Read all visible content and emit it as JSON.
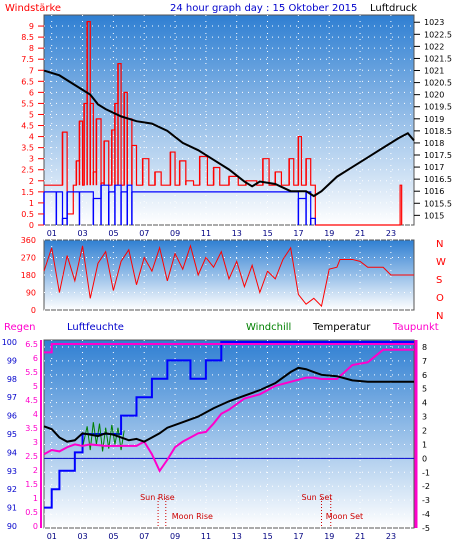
{
  "header": {
    "wind_label": "Windstärke",
    "title": "24 hour graph day : 15 Oktober 2015",
    "pressure_label": "Luftdruck"
  },
  "labels": {
    "rain": "Regen",
    "humidity": "Luftfeuchte",
    "windchill": "Windchill",
    "temperature": "Temperatur",
    "dewpoint": "Taupunkt",
    "sun_rise": "Sun Rise",
    "sun_set": "Sun Set",
    "moon_rise": "Moon Rise",
    "moon_set": "Moon Set"
  },
  "compass": [
    "N",
    "W",
    "S",
    "O",
    "N"
  ],
  "colors": {
    "frame": "#555555",
    "bg_top": "#2f7fd2",
    "bg_bottom": "#ffffff",
    "wind": "#ff0000",
    "gust": "#0000ff",
    "pressure": "#000000",
    "direction": "#ff0000",
    "humidity": "#0000ff",
    "windchill": "#008000",
    "temperature": "#000000",
    "dewpoint": "#ff00cc",
    "rain": "#ff00cc",
    "events": "#cc0000",
    "reference_line": "#0000cc"
  },
  "chart_data": [
    {
      "type": "bar",
      "name": "wind_pressure",
      "x_ticks": [
        "01",
        "03",
        "05",
        "07",
        "09",
        "11",
        "13",
        "15",
        "17",
        "19",
        "21",
        "23"
      ],
      "xlim": [
        0,
        24
      ],
      "y_left_ticks": [
        "0",
        "0.5",
        "1",
        "1.5",
        "2",
        "2.5",
        "3",
        "3.5",
        "4",
        "4.5",
        "5",
        "5.5",
        "6",
        "6.5",
        "7",
        "7.5",
        "8",
        "8.5",
        "9"
      ],
      "y_left_lim": [
        0,
        9.5
      ],
      "y_right_ticks": [
        "1015",
        "1015.5",
        "1016",
        "1016.5",
        "1017",
        "1017.5",
        "1018",
        "1018.5",
        "1019",
        "1019.5",
        "1020",
        "1020.5",
        "1021",
        "1021.5",
        "1022",
        "1022.5",
        "1023"
      ],
      "y_right_lim": [
        1014.6,
        1023.3
      ],
      "wind_series": [
        [
          0.0,
          1.8
        ],
        [
          0.8,
          1.8
        ],
        [
          1.2,
          4.2
        ],
        [
          1.5,
          0.5
        ],
        [
          1.9,
          1.8
        ],
        [
          2.1,
          2.9
        ],
        [
          2.3,
          4.7
        ],
        [
          2.5,
          1.8
        ],
        [
          2.6,
          5.5
        ],
        [
          2.8,
          9.2
        ],
        [
          3.0,
          5.5
        ],
        [
          3.2,
          2.4
        ],
        [
          3.4,
          4.8
        ],
        [
          3.7,
          1.9
        ],
        [
          3.9,
          3.8
        ],
        [
          4.2,
          1.8
        ],
        [
          4.4,
          4.3
        ],
        [
          4.6,
          5.5
        ],
        [
          4.8,
          7.3
        ],
        [
          5.0,
          1.8
        ],
        [
          5.2,
          6.0
        ],
        [
          5.4,
          4.8
        ],
        [
          5.7,
          3.6
        ],
        [
          6.0,
          1.8
        ],
        [
          6.4,
          3.0
        ],
        [
          6.8,
          1.8
        ],
        [
          7.2,
          2.4
        ],
        [
          7.6,
          1.8
        ],
        [
          8.2,
          3.3
        ],
        [
          8.5,
          1.8
        ],
        [
          8.8,
          2.9
        ],
        [
          9.2,
          2.0
        ],
        [
          9.7,
          1.8
        ],
        [
          10.1,
          3.1
        ],
        [
          10.6,
          1.8
        ],
        [
          11.0,
          2.6
        ],
        [
          11.4,
          1.8
        ],
        [
          12.0,
          2.2
        ],
        [
          12.6,
          1.8
        ],
        [
          13.1,
          2.0
        ],
        [
          13.8,
          1.8
        ],
        [
          14.2,
          3.0
        ],
        [
          14.6,
          1.8
        ],
        [
          15.0,
          2.4
        ],
        [
          15.4,
          1.8
        ],
        [
          15.9,
          3.0
        ],
        [
          16.2,
          1.8
        ],
        [
          16.5,
          4.0
        ],
        [
          16.7,
          1.8
        ],
        [
          17.0,
          3.0
        ],
        [
          17.3,
          1.8
        ],
        [
          17.6,
          0.0
        ],
        [
          19.0,
          0.0
        ],
        [
          23.0,
          0.0
        ],
        [
          23.1,
          1.8
        ],
        [
          23.2,
          0.0
        ]
      ],
      "gust_series": [
        [
          0.0,
          1.5
        ],
        [
          0.8,
          1.5
        ],
        [
          1.2,
          0.3
        ],
        [
          1.5,
          1.5
        ],
        [
          2.3,
          1.5
        ],
        [
          3.2,
          1.2
        ],
        [
          3.7,
          1.8
        ],
        [
          4.2,
          1.5
        ],
        [
          4.6,
          1.8
        ],
        [
          5.0,
          1.5
        ],
        [
          5.4,
          1.8
        ],
        [
          5.7,
          1.5
        ],
        [
          16.5,
          1.2
        ],
        [
          17.0,
          1.5
        ],
        [
          17.3,
          0.3
        ],
        [
          17.6,
          0.0
        ]
      ],
      "pressure_series": [
        [
          0.0,
          1021.0
        ],
        [
          1.0,
          1020.8
        ],
        [
          2.0,
          1020.4
        ],
        [
          3.0,
          1020.0
        ],
        [
          3.5,
          1019.6
        ],
        [
          4.0,
          1019.4
        ],
        [
          5.0,
          1019.1
        ],
        [
          6.0,
          1018.9
        ],
        [
          7.0,
          1018.8
        ],
        [
          8.0,
          1018.5
        ],
        [
          9.0,
          1018.0
        ],
        [
          10.0,
          1017.7
        ],
        [
          11.0,
          1017.3
        ],
        [
          12.0,
          1016.9
        ],
        [
          13.0,
          1016.4
        ],
        [
          13.5,
          1016.2
        ],
        [
          14.0,
          1016.4
        ],
        [
          15.0,
          1016.3
        ],
        [
          16.0,
          1016.0
        ],
        [
          17.0,
          1016.0
        ],
        [
          17.5,
          1015.8
        ],
        [
          18.0,
          1016.0
        ],
        [
          19.0,
          1016.6
        ],
        [
          20.0,
          1017.0
        ],
        [
          21.0,
          1017.4
        ],
        [
          22.0,
          1017.8
        ],
        [
          23.0,
          1018.2
        ],
        [
          23.6,
          1018.4
        ],
        [
          24.0,
          1018.1
        ]
      ]
    },
    {
      "type": "line",
      "name": "wind_direction",
      "xlim": [
        0,
        24
      ],
      "y_ticks": [
        "0",
        "90",
        "180",
        "270",
        "360"
      ],
      "ylim": [
        0,
        360
      ],
      "direction_series": [
        [
          0.0,
          200
        ],
        [
          0.5,
          320
        ],
        [
          1.0,
          90
        ],
        [
          1.5,
          280
        ],
        [
          2.0,
          150
        ],
        [
          2.5,
          330
        ],
        [
          3.0,
          60
        ],
        [
          3.5,
          240
        ],
        [
          4.0,
          300
        ],
        [
          4.5,
          100
        ],
        [
          5.0,
          250
        ],
        [
          5.5,
          310
        ],
        [
          6.0,
          130
        ],
        [
          6.5,
          270
        ],
        [
          7.0,
          200
        ],
        [
          7.5,
          320
        ],
        [
          8.0,
          150
        ],
        [
          8.5,
          290
        ],
        [
          9.0,
          210
        ],
        [
          9.5,
          330
        ],
        [
          10.0,
          180
        ],
        [
          10.5,
          270
        ],
        [
          11.0,
          220
        ],
        [
          11.5,
          300
        ],
        [
          12.0,
          160
        ],
        [
          12.5,
          250
        ],
        [
          13.0,
          120
        ],
        [
          13.5,
          230
        ],
        [
          14.0,
          90
        ],
        [
          14.5,
          200
        ],
        [
          15.0,
          160
        ],
        [
          15.5,
          260
        ],
        [
          16.0,
          320
        ],
        [
          16.5,
          80
        ],
        [
          17.0,
          30
        ],
        [
          17.5,
          60
        ],
        [
          18.0,
          20
        ],
        [
          18.5,
          210
        ],
        [
          19.0,
          220
        ],
        [
          19.2,
          260
        ],
        [
          20.0,
          260
        ],
        [
          20.5,
          250
        ],
        [
          21.0,
          220
        ],
        [
          22.0,
          220
        ],
        [
          22.5,
          180
        ],
        [
          24.0,
          180
        ]
      ]
    },
    {
      "type": "line",
      "name": "temperature_humidity",
      "x_ticks": [
        "01",
        "03",
        "05",
        "07",
        "09",
        "11",
        "13",
        "15",
        "17",
        "19",
        "21",
        "23"
      ],
      "xlim": [
        0,
        24
      ],
      "y_left_ticks": [
        "90",
        "91",
        "92",
        "93",
        "94",
        "95",
        "96",
        "97",
        "98",
        "99",
        "100"
      ],
      "y_left_lim": [
        90,
        100
      ],
      "y_left_inner_ticks": [
        "0",
        "0.5",
        "1",
        "1.5",
        "2",
        "2.5",
        "3",
        "3.5",
        "4",
        "4.5",
        "5",
        "5.5",
        "6",
        "6.5"
      ],
      "y_left_inner_lim": [
        0,
        6.5
      ],
      "y_right_ticks": [
        "-5",
        "-4",
        "-3",
        "-2",
        "-1",
        "0",
        "1",
        "2",
        "3",
        "4",
        "5",
        "6",
        "7",
        "8"
      ],
      "y_right_lim": [
        -5,
        8.5
      ],
      "temperature_series": [
        [
          0.0,
          2.3
        ],
        [
          0.5,
          2.1
        ],
        [
          1.0,
          1.5
        ],
        [
          1.5,
          1.2
        ],
        [
          2.0,
          1.3
        ],
        [
          2.5,
          1.8
        ],
        [
          3.0,
          1.7
        ],
        [
          3.5,
          1.6
        ],
        [
          4.0,
          1.8
        ],
        [
          4.5,
          1.7
        ],
        [
          5.0,
          1.5
        ],
        [
          5.5,
          1.3
        ],
        [
          6.0,
          1.4
        ],
        [
          6.5,
          1.2
        ],
        [
          7.0,
          1.5
        ],
        [
          7.5,
          1.8
        ],
        [
          8.0,
          2.2
        ],
        [
          9.0,
          2.6
        ],
        [
          10.0,
          3.0
        ],
        [
          11.0,
          3.6
        ],
        [
          12.0,
          4.1
        ],
        [
          13.0,
          4.5
        ],
        [
          14.0,
          4.9
        ],
        [
          15.0,
          5.4
        ],
        [
          16.0,
          6.2
        ],
        [
          16.5,
          6.5
        ],
        [
          17.0,
          6.4
        ],
        [
          17.5,
          6.2
        ],
        [
          18.0,
          6.0
        ],
        [
          19.0,
          5.9
        ],
        [
          20.0,
          5.6
        ],
        [
          21.0,
          5.5
        ],
        [
          22.0,
          5.5
        ],
        [
          23.0,
          5.5
        ],
        [
          24.0,
          5.5
        ]
      ],
      "dewpoint_series": [
        [
          0.0,
          0.3
        ],
        [
          0.5,
          0.6
        ],
        [
          1.0,
          0.5
        ],
        [
          1.5,
          0.8
        ],
        [
          2.0,
          1.0
        ],
        [
          2.5,
          0.9
        ],
        [
          3.0,
          1.0
        ],
        [
          4.0,
          0.9
        ],
        [
          5.0,
          0.9
        ],
        [
          6.0,
          0.9
        ],
        [
          6.5,
          1.2
        ],
        [
          7.0,
          0.3
        ],
        [
          7.5,
          -0.9
        ],
        [
          8.0,
          -0.1
        ],
        [
          8.5,
          0.8
        ],
        [
          9.0,
          1.2
        ],
        [
          9.5,
          1.5
        ],
        [
          10.0,
          1.8
        ],
        [
          10.5,
          1.9
        ],
        [
          11.0,
          2.5
        ],
        [
          11.5,
          3.2
        ],
        [
          12.0,
          3.5
        ],
        [
          13.0,
          4.3
        ],
        [
          14.0,
          4.6
        ],
        [
          15.0,
          5.2
        ],
        [
          16.0,
          5.5
        ],
        [
          17.0,
          5.8
        ],
        [
          17.5,
          5.8
        ],
        [
          18.0,
          5.7
        ],
        [
          19.0,
          5.7
        ],
        [
          20.0,
          6.7
        ],
        [
          21.0,
          6.9
        ],
        [
          22.0,
          7.8
        ],
        [
          23.0,
          7.8
        ],
        [
          24.0,
          7.8
        ]
      ],
      "windchill_series": [
        [
          2.5,
          0.8
        ],
        [
          2.8,
          2.3
        ],
        [
          3.0,
          0.6
        ],
        [
          3.2,
          2.6
        ],
        [
          3.4,
          1.0
        ],
        [
          3.6,
          2.5
        ],
        [
          3.8,
          0.5
        ],
        [
          4.0,
          2.2
        ],
        [
          4.2,
          0.7
        ],
        [
          4.4,
          2.4
        ],
        [
          4.6,
          1.0
        ],
        [
          4.8,
          2.2
        ],
        [
          5.0,
          0.6
        ],
        [
          5.2,
          2.0
        ]
      ],
      "humidity_series": [
        [
          0.0,
          91
        ],
        [
          0.5,
          92
        ],
        [
          1.0,
          93
        ],
        [
          1.5,
          93
        ],
        [
          2.0,
          94
        ],
        [
          2.5,
          95
        ],
        [
          3.0,
          95
        ],
        [
          4.0,
          95
        ],
        [
          5.0,
          96
        ],
        [
          5.5,
          96
        ],
        [
          6.0,
          97
        ],
        [
          6.5,
          97
        ],
        [
          7.0,
          98
        ],
        [
          7.5,
          98
        ],
        [
          8.0,
          99
        ],
        [
          8.5,
          99
        ],
        [
          9.0,
          99
        ],
        [
          9.5,
          98
        ],
        [
          10.0,
          98
        ],
        [
          10.5,
          99
        ],
        [
          11.0,
          99
        ],
        [
          11.5,
          100
        ],
        [
          12.0,
          100
        ],
        [
          13.0,
          100
        ],
        [
          14.0,
          100
        ],
        [
          15.0,
          100
        ],
        [
          15.5,
          100
        ],
        [
          16.0,
          100
        ],
        [
          17.0,
          100
        ],
        [
          18.0,
          100
        ],
        [
          19.0,
          100
        ],
        [
          20.0,
          100
        ],
        [
          21.0,
          100
        ],
        [
          22.0,
          100
        ],
        [
          23.0,
          100
        ],
        [
          24.0,
          100
        ]
      ],
      "rain_series": [
        [
          0.0,
          6.2
        ],
        [
          0.5,
          6.5
        ],
        [
          1.0,
          6.5
        ],
        [
          2.0,
          6.5
        ],
        [
          3.0,
          6.5
        ],
        [
          5.0,
          6.5
        ],
        [
          7.0,
          6.5
        ],
        [
          10.0,
          6.5
        ],
        [
          15.0,
          6.5
        ],
        [
          24.0,
          6.5
        ]
      ],
      "reference_value": 0,
      "events": {
        "sun_rise_hour": 7.4,
        "sun_set_hour": 18.0,
        "moon_rise_hour": 7.9,
        "moon_set_hour": 18.6
      }
    }
  ]
}
